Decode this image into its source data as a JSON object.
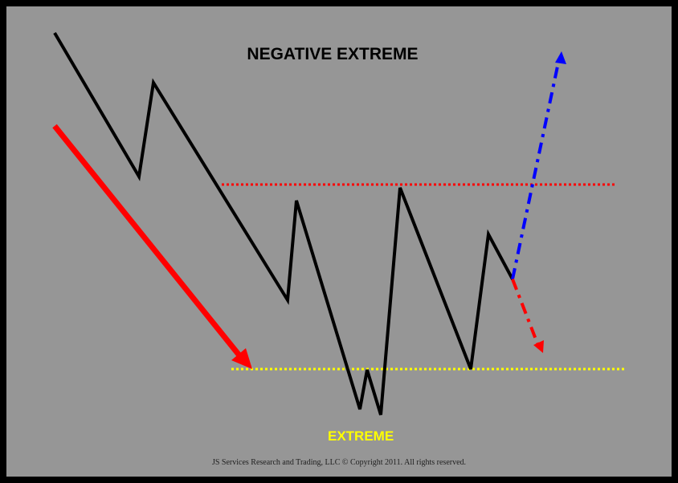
{
  "title": "NEGATIVE EXTREME",
  "extreme_label": "EXTREME",
  "footer": "JS Services Research and Trading, LLC © Copyright 2011. All rights reserved.",
  "colors": {
    "background": "#969696",
    "border": "#000000",
    "price_line": "#000000",
    "trend_arrow": "#ff0000",
    "resistance_line": "#ff0000",
    "extreme_line": "#ffff00",
    "up_arrow": "#0000ff",
    "down_arrow": "#ff0000"
  },
  "lines": {
    "resistance": "dotted red horizontal line",
    "extreme": "dotted yellow horizontal line"
  },
  "arrows": {
    "trend": "solid red downtrend arrow",
    "breakout_up": "dash-dot blue arrow pointing up",
    "breakdown": "dash-dot red arrow pointing down"
  }
}
